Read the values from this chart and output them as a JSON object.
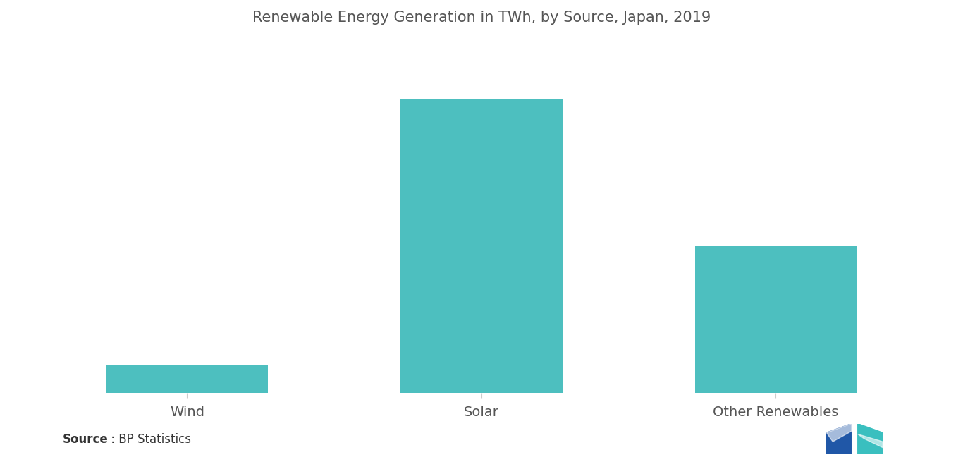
{
  "title": "Renewable Energy Generation in TWh, by Source, Japan, 2019",
  "categories": [
    "Wind",
    "Solar",
    "Other Renewables"
  ],
  "values": [
    7,
    74,
    37
  ],
  "bar_color": "#4DBFBF",
  "background_color": "#ffffff",
  "source_label": "Source",
  "source_colon": " : ",
  "source_text": "BP Statistics",
  "title_fontsize": 15,
  "label_fontsize": 14,
  "source_fontsize": 12,
  "bar_width": 0.55,
  "xlim": [
    -0.6,
    2.6
  ],
  "ylim": [
    0,
    88
  ],
  "text_color": "#555555"
}
